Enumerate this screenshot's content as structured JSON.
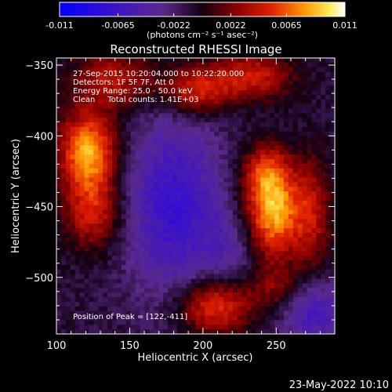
{
  "colorbar": {
    "tick_labels": [
      "-0.011",
      "-0.0065",
      "-0.0022",
      "0.0022",
      "0.0065",
      "0.011"
    ],
    "min": -0.011,
    "max": 0.011,
    "unit_label": "(photons cm⁻² s⁻¹ asec⁻²)"
  },
  "chart_data": {
    "type": "heatmap",
    "title": "Reconstructed RHESSI Image",
    "xlabel": "Heliocentric X (arcsec)",
    "ylabel": "Heliocentric Y (arcsec)",
    "xlim": [
      100,
      290
    ],
    "ylim": [
      -540,
      -345
    ],
    "x_ticks": [
      100,
      150,
      200,
      250
    ],
    "y_ticks": [
      -350,
      -400,
      -450,
      -500
    ],
    "info_lines": [
      "27-Sep-2015 10:20:04.000 to 10:22:20.000",
      "Detectors: 1F 5F 7F, Att 0",
      "Energy Range: 25.0 - 50.0 keV",
      "Clean     Total counts: 1.41E+03"
    ],
    "peak_label": "Position of Peak = [122,-411]",
    "peak": [
      122,
      -411
    ],
    "sources": [
      {
        "x": 122,
        "y": -411,
        "amplitude": 0.0095,
        "sigma_x": 14,
        "sigma_y": 20
      },
      {
        "x": 125,
        "y": -455,
        "amplitude": 0.0055,
        "sigma_x": 14,
        "sigma_y": 18
      },
      {
        "x": 140,
        "y": -360,
        "amplitude": 0.005,
        "sigma_x": 20,
        "sigma_y": 14
      },
      {
        "x": 195,
        "y": -368,
        "amplitude": 0.006,
        "sigma_x": 16,
        "sigma_y": 12
      },
      {
        "x": 233,
        "y": -358,
        "amplitude": 0.0055,
        "sigma_x": 20,
        "sigma_y": 12
      },
      {
        "x": 248,
        "y": -455,
        "amplitude": 0.0095,
        "sigma_x": 14,
        "sigma_y": 22
      },
      {
        "x": 243,
        "y": -425,
        "amplitude": 0.005,
        "sigma_x": 12,
        "sigma_y": 14
      },
      {
        "x": 275,
        "y": -455,
        "amplitude": 0.004,
        "sigma_x": 9,
        "sigma_y": 30
      },
      {
        "x": 208,
        "y": -520,
        "amplitude": 0.007,
        "sigma_x": 18,
        "sigma_y": 14
      },
      {
        "x": 250,
        "y": -508,
        "amplitude": 0.0035,
        "sigma_x": 12,
        "sigma_y": 12
      }
    ],
    "troughs": [
      {
        "x": 180,
        "y": -450,
        "amplitude": -0.006,
        "sigma_x": 24,
        "sigma_y": 45
      },
      {
        "x": 275,
        "y": -525,
        "amplitude": -0.005,
        "sigma_x": 16,
        "sigma_y": 16
      },
      {
        "x": 220,
        "y": -480,
        "amplitude": -0.0025,
        "sigma_x": 14,
        "sigma_y": 20
      }
    ],
    "background": -0.001,
    "noise_amplitude": 0.0016
  },
  "footer": {
    "date": "23-May-2022 10:10"
  },
  "colors": {
    "background": "#000000",
    "text": "#ffffff"
  }
}
